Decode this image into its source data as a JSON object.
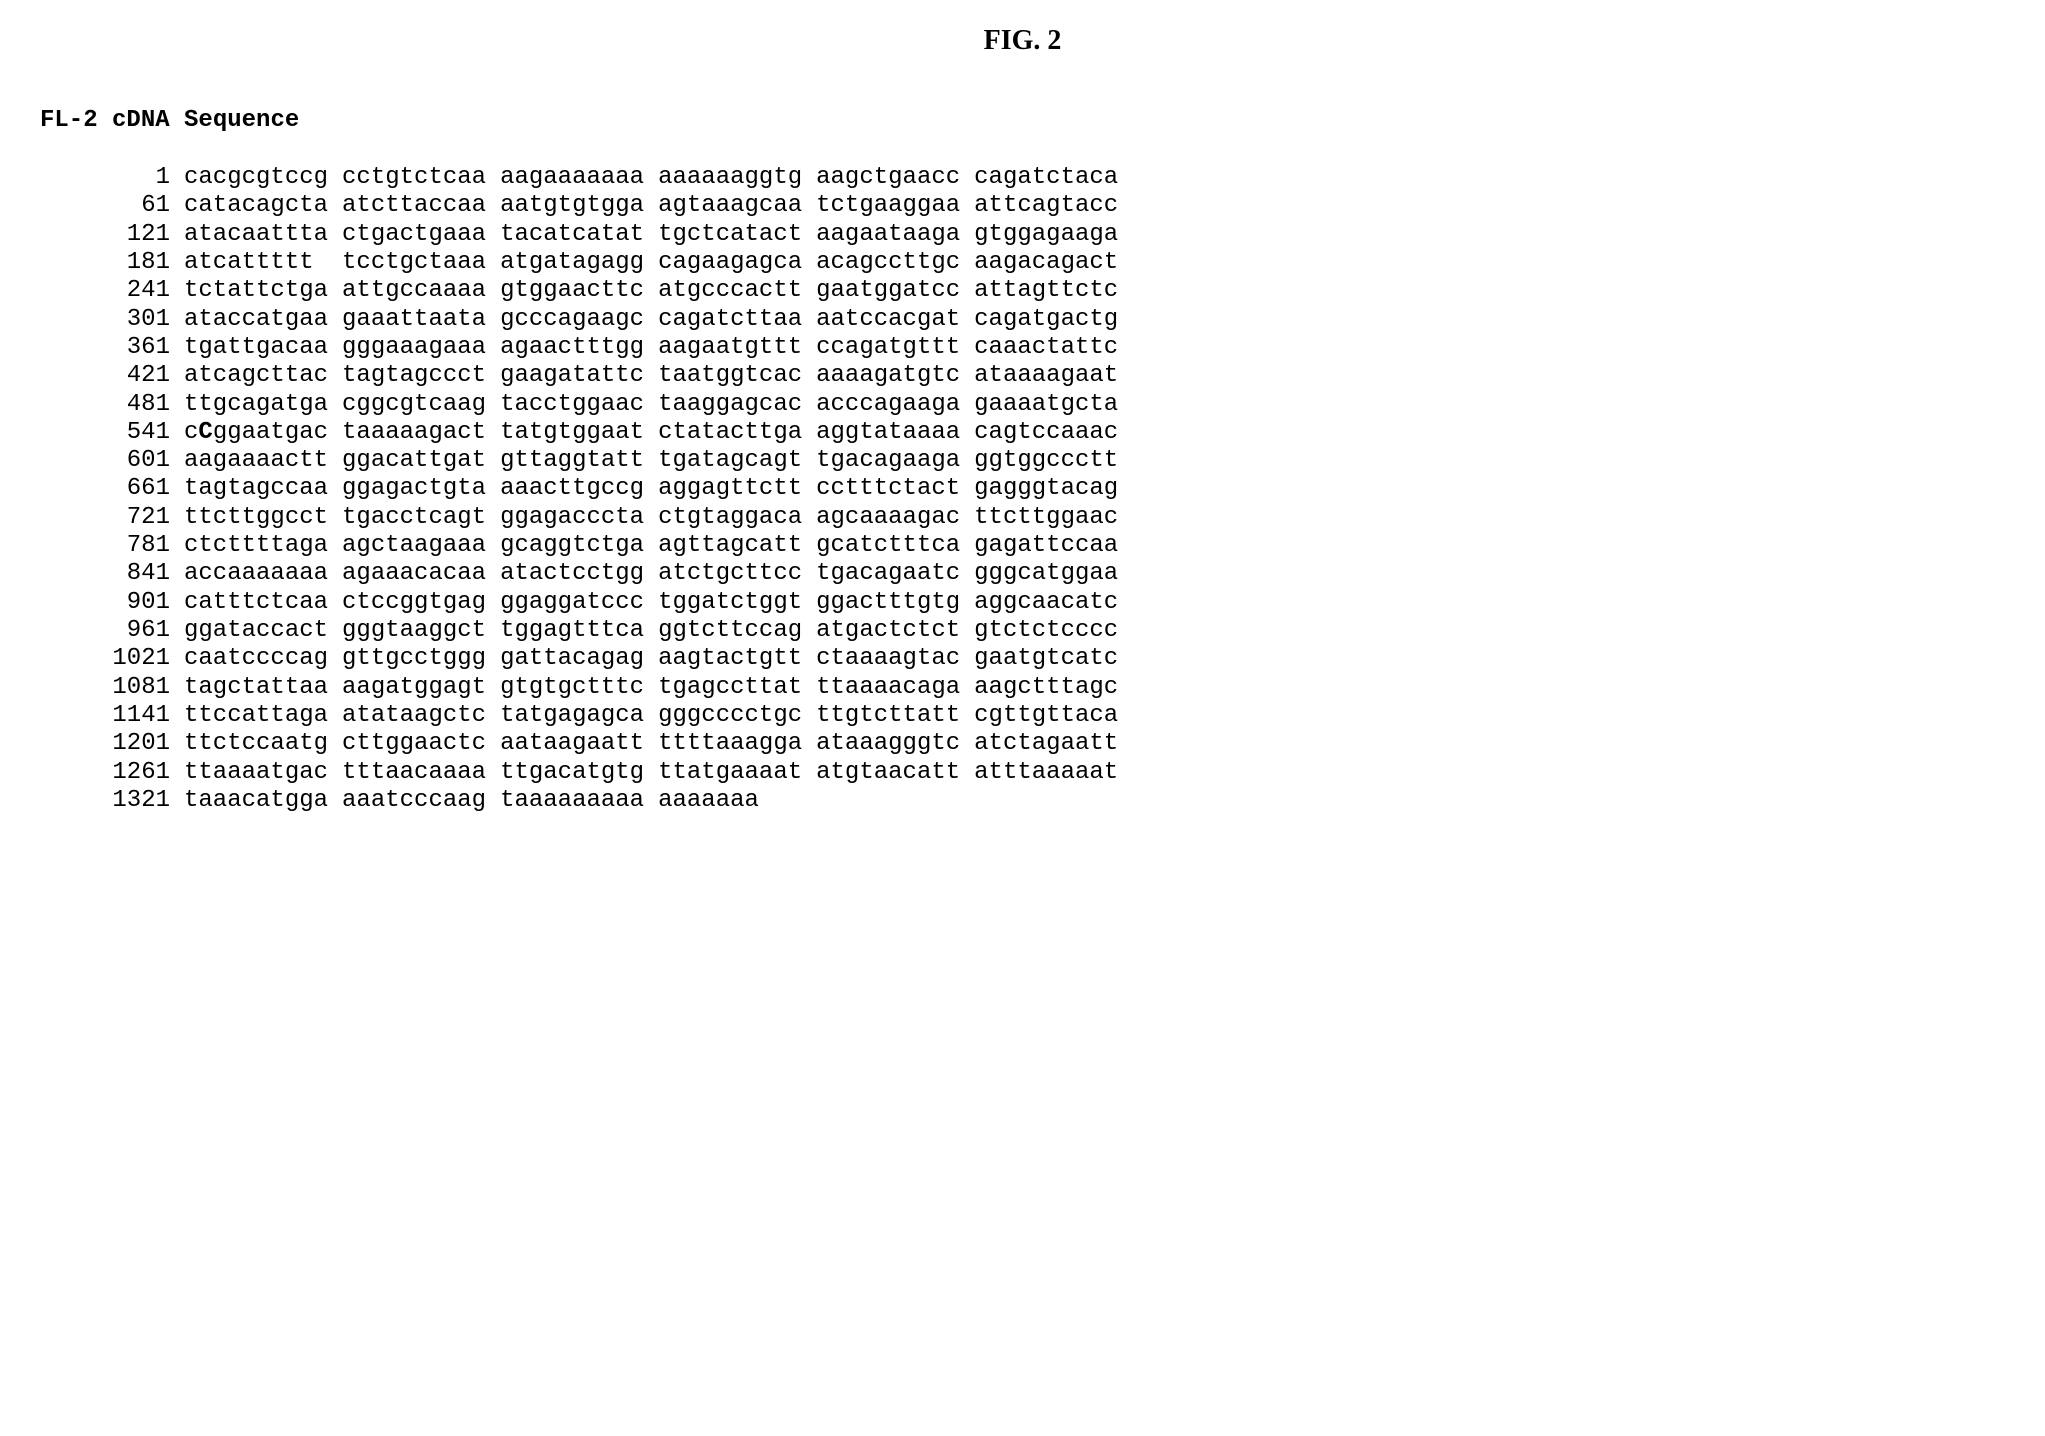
{
  "figureTitle": "FIG. 2",
  "sequenceHeader": "FL-2 cDNA Sequence",
  "typography": {
    "titleFontFamily": "Times New Roman",
    "titleFontSize": 28,
    "titleFontWeight": "bold",
    "sequenceFontFamily": "Courier New",
    "sequenceFontSize": 24,
    "headerFontWeight": "bold",
    "backgroundColor": "#ffffff",
    "textColor": "#000000"
  },
  "specialBase": {
    "row": 10,
    "segment": 1,
    "charIndex": 1,
    "base": "C"
  },
  "rows": [
    {
      "pos": "1",
      "segments": [
        "cacgcgtccg",
        "cctgtctcaa",
        "aagaaaaaaa",
        "aaaaaaggtg",
        "aagctgaacc",
        "cagatctaca"
      ]
    },
    {
      "pos": "61",
      "segments": [
        "catacagcta",
        "atcttaccaa",
        "aatgtgtgga",
        "agtaaagcaa",
        "tctgaaggaa",
        "attcagtacc"
      ]
    },
    {
      "pos": "121",
      "segments": [
        "atacaattta",
        "ctgactgaaa",
        "tacatcatat",
        "tgctcatact",
        "aagaataaga",
        "gtggagaaga"
      ]
    },
    {
      "pos": "181",
      "segments": [
        "atcattttt",
        "tcctgctaaa",
        "atgatagagg",
        "cagaagagca",
        "acagccttgc",
        "aagacagact"
      ]
    },
    {
      "pos": "241",
      "segments": [
        "tctattctga",
        "attgccaaaa",
        "gtggaacttc",
        "atgcccactt",
        "gaatggatcc",
        "attagttctc"
      ]
    },
    {
      "pos": "301",
      "segments": [
        "ataccatgaa",
        "gaaattaata",
        "gcccagaagc",
        "cagatcttaa",
        "aatccacgat",
        "cagatgactg"
      ]
    },
    {
      "pos": "361",
      "segments": [
        "tgattgacaa",
        "gggaaagaaa",
        "agaactttgg",
        "aagaatgttt",
        "ccagatgttt",
        "caaactattc"
      ]
    },
    {
      "pos": "421",
      "segments": [
        "atcagcttac",
        "tagtagccct",
        "gaagatattc",
        "taatggtcac",
        "aaaagatgtc",
        "ataaaagaat"
      ]
    },
    {
      "pos": "481",
      "segments": [
        "ttgcagatga",
        "cggcgtcaag",
        "tacctggaac",
        "taaggagcac",
        "acccagaaga",
        "gaaaatgcta"
      ]
    },
    {
      "pos": "541",
      "segments": [
        "cCggaatgac",
        "taaaaagact",
        "tatgtggaat",
        "ctatacttga",
        "aggtataaaa",
        "cagtccaaac"
      ]
    },
    {
      "pos": "601",
      "segments": [
        "aagaaaactt",
        "ggacattgat",
        "gttaggtatt",
        "tgatagcagt",
        "tgacagaaga",
        "ggtggccctt"
      ]
    },
    {
      "pos": "661",
      "segments": [
        "tagtagccaa",
        "ggagactgta",
        "aaacttgccg",
        "aggagttctt",
        "cctttctact",
        "gagggtacag"
      ]
    },
    {
      "pos": "721",
      "segments": [
        "ttcttggcct",
        "tgacctcagt",
        "ggagacccta",
        "ctgtaggaca",
        "agcaaaagac",
        "ttcttggaac"
      ]
    },
    {
      "pos": "781",
      "segments": [
        "ctcttttaga",
        "agctaagaaa",
        "gcaggtctga",
        "agttagcatt",
        "gcatctttca",
        "gagattccaa"
      ]
    },
    {
      "pos": "841",
      "segments": [
        "accaaaaaaa",
        "agaaacacaa",
        "atactcctgg",
        "atctgcttcc",
        "tgacagaatc",
        "gggcatggaa"
      ]
    },
    {
      "pos": "901",
      "segments": [
        "catttctcaa",
        "ctccggtgag",
        "ggaggatccc",
        "tggatctggt",
        "ggactttgtg",
        "aggcaacatc"
      ]
    },
    {
      "pos": "961",
      "segments": [
        "ggataccact",
        "gggtaaggct",
        "tggagtttca",
        "ggtcttccag",
        "atgactctct",
        "gtctctcccc"
      ]
    },
    {
      "pos": "1021",
      "segments": [
        "caatccccag",
        "gttgcctggg",
        "gattacagag",
        "aagtactgtt",
        "ctaaaagtac",
        "gaatgtcatc"
      ]
    },
    {
      "pos": "1081",
      "segments": [
        "tagctattaa",
        "aagatggagt",
        "gtgtgctttc",
        "tgagccttat",
        "ttaaaacaga",
        "aagctttagc"
      ]
    },
    {
      "pos": "1141",
      "segments": [
        "ttccattaga",
        "atataagctc",
        "tatgagagca",
        "gggcccctgc",
        "ttgtcttatt",
        "cgttgttaca"
      ]
    },
    {
      "pos": "1201",
      "segments": [
        "ttctccaatg",
        "cttggaactc",
        "aataagaatt",
        "ttttaaagga",
        "ataaagggtc",
        "atctagaatt"
      ]
    },
    {
      "pos": "1261",
      "segments": [
        "ttaaaatgac",
        "tttaacaaaa",
        "ttgacatgtg",
        "ttatgaaaat",
        "atgtaacatt",
        "atttaaaaat"
      ]
    },
    {
      "pos": "1321",
      "segments": [
        "taaacatgga",
        "aaatcccaag",
        "taaaaaaaaa",
        "aaaaaaa",
        "",
        ""
      ]
    }
  ]
}
